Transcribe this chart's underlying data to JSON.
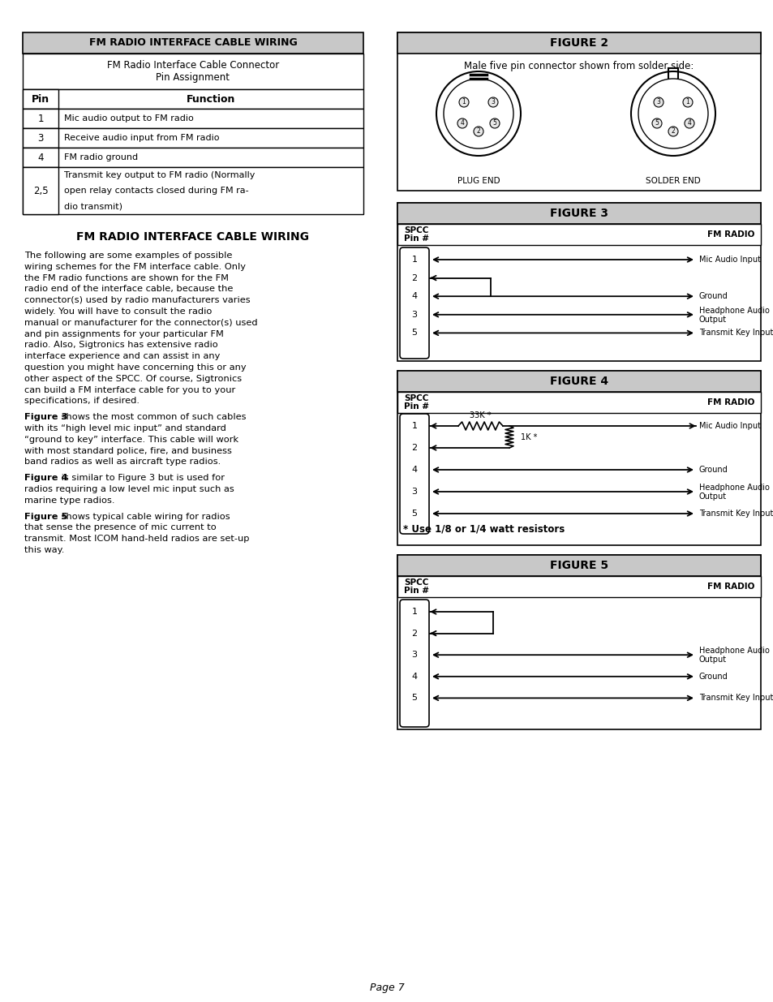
{
  "page_bg": "#ffffff",
  "header_bg": "#c8c8c8",
  "table_title": "FM RADIO INTERFACE CABLE WIRING",
  "table_subtitle1": "FM Radio Interface Cable Connector",
  "table_subtitle2": "Pin Assignment",
  "table_col1": "Pin",
  "table_col2": "Function",
  "table_rows": [
    [
      "1",
      "Mic audio output to FM radio"
    ],
    [
      "3",
      "Receive audio input from FM radio"
    ],
    [
      "4",
      "FM radio ground"
    ],
    [
      "2,5",
      "Transmit key output to FM radio (Normally\nopen relay contacts closed during FM ra-\ndio transmit)"
    ]
  ],
  "section_title": "FM RADIO INTERFACE CABLE WIRING",
  "body_paragraphs": [
    "The following are some examples of possible wiring schemes for the FM interface cable. Only the FM radio functions are shown for the FM radio end of the interface cable, because the connector(s) used by radio manufacturers varies widely. You will have to consult the radio manual or manufacturer for the connector(s) used and pin assignments for your particular FM radio. Also, Sigtronics has extensive radio interface experience and can assist in any question you might have concerning this or any other aspect of the SPCC. Of course, Sigtronics can build a FM interface cable for you to your specifications, if desired.",
    "Figure 3|shows the most common of such cables with its “high level mic input” and standard “ground to key” interface. This cable will work with most standard police, fire, and business band radios as well as aircraft type radios.",
    "Figure 4|is similar to Figure 3 but is used for radios requiring a low level mic input such as marine type radios.",
    "Figure 5|shows typical cable wiring for radios that sense the presence of mic current to transmit. Most ICOM hand-held radios are set-up this way."
  ],
  "fig2_title": "FIGURE 2",
  "fig2_subtitle": "Male five pin connector shown from solder side:",
  "fig3_title": "FIGURE 3",
  "fig4_title": "FIGURE 4",
  "fig5_title": "FIGURE 5",
  "spcc_label": "SPCC\nPin #",
  "fm_radio_label": "FM RADIO",
  "fig3_right_labels": [
    "Mic Audio Input",
    null,
    "Ground",
    "Headphone Audio\nOutput",
    "Transmit Key Input"
  ],
  "fig4_right_labels": [
    "Mic Audio Input",
    null,
    "Ground",
    "Headphone Audio\nOutput",
    "Transmit Key Input"
  ],
  "fig5_right_labels": [
    null,
    null,
    "Headphone Audio\nOutput",
    "Ground",
    "Transmit Key Input"
  ],
  "fig3_pins": [
    1,
    2,
    4,
    3,
    5
  ],
  "fig4_pins": [
    1,
    2,
    4,
    3,
    5
  ],
  "fig5_pins": [
    1,
    2,
    3,
    4,
    5
  ],
  "resistor_note": "* Use 1/8 or 1/4 watt resistors",
  "plug_end": "PLUG END",
  "solder_end": "SOLDER END",
  "page_num": "Page 7"
}
